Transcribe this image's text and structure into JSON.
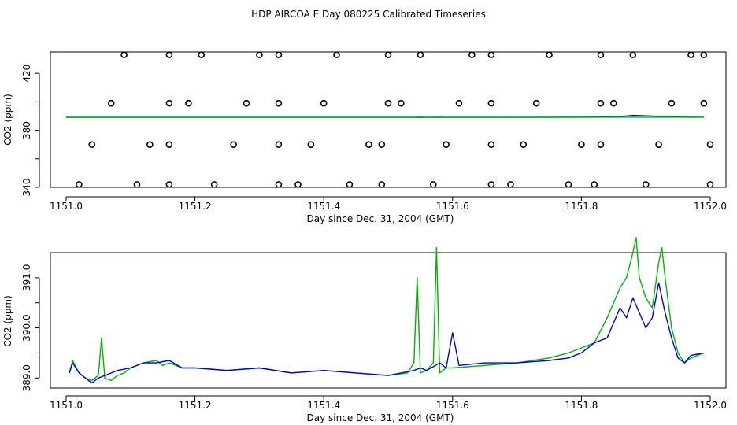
{
  "title": "HDP AIRCOA E  Day 080225  Calibrated Timeseries",
  "colors": {
    "blue": "#0000dd",
    "green": "#00b400",
    "axis": "#000000"
  },
  "chart_data": [
    {
      "type": "line",
      "xlabel": "Day since Dec. 31, 2004 (GMT)",
      "ylabel": "CO2 (ppm)",
      "xlim": [
        1151.0,
        1152.0
      ],
      "ylim": [
        340,
        435
      ],
      "xticks": [
        "1151.0",
        "1151.2",
        "1151.4",
        "1151.6",
        "1151.8",
        "1152.0"
      ],
      "yticks": [
        "340",
        "380",
        "420"
      ],
      "yticks_minor": [
        360,
        400
      ],
      "grid": false,
      "circles": [
        [
          1151.02,
          342
        ],
        [
          1151.04,
          370
        ],
        [
          1151.07,
          399
        ],
        [
          1151.09,
          433
        ],
        [
          1151.11,
          342
        ],
        [
          1151.13,
          370
        ],
        [
          1151.16,
          342
        ],
        [
          1151.16,
          370
        ],
        [
          1151.16,
          399
        ],
        [
          1151.16,
          433
        ],
        [
          1151.19,
          399
        ],
        [
          1151.21,
          433
        ],
        [
          1151.23,
          342
        ],
        [
          1151.26,
          370
        ],
        [
          1151.28,
          399
        ],
        [
          1151.3,
          433
        ],
        [
          1151.33,
          433
        ],
        [
          1151.33,
          399
        ],
        [
          1151.33,
          370
        ],
        [
          1151.33,
          342
        ],
        [
          1151.36,
          342
        ],
        [
          1151.38,
          370
        ],
        [
          1151.4,
          399
        ],
        [
          1151.42,
          433
        ],
        [
          1151.44,
          342
        ],
        [
          1151.47,
          370
        ],
        [
          1151.49,
          342
        ],
        [
          1151.49,
          370
        ],
        [
          1151.5,
          399
        ],
        [
          1151.5,
          433
        ],
        [
          1151.52,
          399
        ],
        [
          1151.55,
          433
        ],
        [
          1151.57,
          342
        ],
        [
          1151.59,
          370
        ],
        [
          1151.61,
          399
        ],
        [
          1151.63,
          433
        ],
        [
          1151.66,
          433
        ],
        [
          1151.66,
          399
        ],
        [
          1151.66,
          370
        ],
        [
          1151.66,
          342
        ],
        [
          1151.69,
          342
        ],
        [
          1151.71,
          370
        ],
        [
          1151.73,
          399
        ],
        [
          1151.75,
          433
        ],
        [
          1151.78,
          342
        ],
        [
          1151.8,
          370
        ],
        [
          1151.82,
          342
        ],
        [
          1151.83,
          370
        ],
        [
          1151.83,
          399
        ],
        [
          1151.83,
          433
        ],
        [
          1151.85,
          399
        ],
        [
          1151.88,
          433
        ],
        [
          1151.9,
          342
        ],
        [
          1151.92,
          370
        ],
        [
          1151.94,
          399
        ],
        [
          1151.97,
          433
        ],
        [
          1151.99,
          433
        ],
        [
          1151.99,
          399
        ],
        [
          1152.0,
          370
        ],
        [
          1152.0,
          342
        ]
      ],
      "series": [
        {
          "color": "#0000dd",
          "x": [
            1151.0,
            1151.2,
            1151.4,
            1151.6,
            1151.8,
            1151.86,
            1151.88,
            1151.92,
            1151.97,
            1151.99
          ],
          "y": [
            389.1,
            389.1,
            389.1,
            389.1,
            389.2,
            389.6,
            390.5,
            389.8,
            389.2,
            389.2
          ]
        },
        {
          "color": "#00b400",
          "x": [
            1151.0,
            1151.54,
            1151.55,
            1151.56,
            1151.58,
            1151.59,
            1151.99
          ],
          "y": [
            389.1,
            389.1,
            389.5,
            389.1,
            389.3,
            389.1,
            389.2
          ]
        }
      ]
    },
    {
      "type": "line",
      "xlabel": "Day since Dec. 31, 2004 (GMT)",
      "ylabel": "CO2 (ppm)",
      "xlim": [
        1151.0,
        1152.0
      ],
      "ylim": [
        388.8,
        391.5
      ],
      "xticks": [
        "1151.0",
        "1151.2",
        "1151.4",
        "1151.6",
        "1151.8",
        "1152.0"
      ],
      "yticks": [
        "389.0",
        "390.0",
        "391.0"
      ],
      "yticks_minor": [
        389.5,
        390.5
      ],
      "grid": false,
      "series": [
        {
          "color": "#00b400",
          "x": [
            1151.005,
            1151.01,
            1151.02,
            1151.03,
            1151.04,
            1151.05,
            1151.055,
            1151.06,
            1151.07,
            1151.08,
            1151.09,
            1151.1,
            1151.12,
            1151.14,
            1151.15,
            1151.16,
            1151.18,
            1151.2,
            1151.25,
            1151.3,
            1151.35,
            1151.4,
            1151.45,
            1151.5,
            1151.53,
            1151.54,
            1151.545,
            1151.55,
            1151.56,
            1151.57,
            1151.575,
            1151.58,
            1151.59,
            1151.6,
            1151.65,
            1151.7,
            1151.75,
            1151.78,
            1151.8,
            1151.82,
            1151.84,
            1151.86,
            1151.87,
            1151.88,
            1151.885,
            1151.89,
            1151.9,
            1151.91,
            1151.92,
            1151.925,
            1151.93,
            1151.94,
            1151.95,
            1151.96,
            1151.97,
            1151.99
          ],
          "y": [
            389.1,
            389.35,
            389.1,
            389.0,
            388.95,
            389.05,
            389.8,
            389.0,
            388.95,
            389.05,
            389.1,
            389.2,
            389.3,
            389.35,
            389.25,
            389.3,
            389.2,
            389.2,
            389.15,
            389.2,
            389.1,
            389.15,
            389.1,
            389.05,
            389.1,
            389.3,
            391.0,
            389.1,
            389.15,
            389.3,
            391.6,
            389.1,
            389.2,
            389.2,
            389.25,
            389.3,
            389.4,
            389.5,
            389.6,
            389.7,
            390.2,
            390.8,
            391.0,
            391.5,
            391.8,
            391.0,
            390.6,
            390.4,
            391.3,
            391.6,
            391.0,
            390.0,
            389.5,
            389.3,
            389.4,
            389.5
          ]
        },
        {
          "color": "#0000dd",
          "x": [
            1151.005,
            1151.01,
            1151.02,
            1151.03,
            1151.04,
            1151.05,
            1151.06,
            1151.07,
            1151.08,
            1151.1,
            1151.12,
            1151.14,
            1151.16,
            1151.18,
            1151.2,
            1151.25,
            1151.3,
            1151.35,
            1151.4,
            1151.45,
            1151.5,
            1151.54,
            1151.55,
            1151.56,
            1151.58,
            1151.59,
            1151.6,
            1151.61,
            1151.65,
            1151.7,
            1151.75,
            1151.78,
            1151.8,
            1151.82,
            1151.84,
            1151.86,
            1151.87,
            1151.88,
            1151.89,
            1151.9,
            1151.91,
            1151.92,
            1151.93,
            1151.94,
            1151.95,
            1151.96,
            1151.97,
            1151.99
          ],
          "y": [
            389.1,
            389.3,
            389.1,
            389.0,
            388.9,
            389.0,
            389.05,
            389.1,
            389.15,
            389.2,
            389.3,
            389.3,
            389.35,
            389.2,
            389.2,
            389.15,
            389.2,
            389.1,
            389.15,
            389.1,
            389.05,
            389.15,
            389.2,
            389.15,
            389.3,
            389.2,
            389.9,
            389.25,
            389.3,
            389.3,
            389.35,
            389.4,
            389.5,
            389.7,
            389.8,
            390.4,
            390.2,
            390.6,
            390.3,
            390.0,
            390.2,
            390.9,
            390.3,
            389.8,
            389.4,
            389.3,
            389.45,
            389.5
          ]
        }
      ]
    }
  ]
}
